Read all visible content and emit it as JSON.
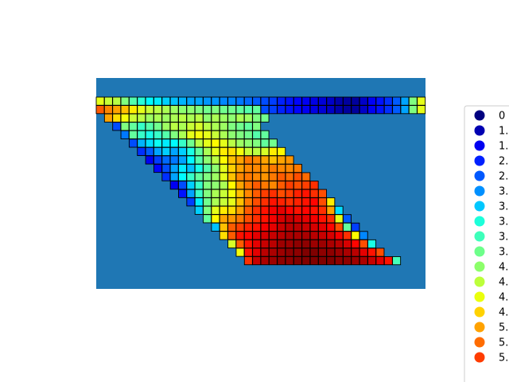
{
  "chart_data": {
    "type": "heatmap",
    "title": "",
    "xlabel": "",
    "ylabel": "",
    "axes_visible": false,
    "grid": false,
    "background_color": "#1f77b4",
    "cell_edge_color": "#000000",
    "colormap": "jet",
    "value_range": [
      0,
      7
    ],
    "legend": {
      "placement": "right",
      "marker": "circle",
      "labels": [
        "0",
        "1.",
        "1.",
        "2.",
        "2.",
        "3.",
        "3.",
        "3.",
        "3.",
        "3.",
        "4.",
        "4.",
        "4.",
        "4.",
        "5.",
        "5.",
        "5."
      ],
      "colors": [
        "#00007f",
        "#0000b2",
        "#0000f1",
        "#0020ff",
        "#0058ff",
        "#0090ff",
        "#00c8ff",
        "#1cffda",
        "#3dffba",
        "#6dff8a",
        "#8cff6a",
        "#bcff3a",
        "#eaff0c",
        "#ffd200",
        "#ffa200",
        "#ff6c00",
        "#ff3c00"
      ]
    },
    "rows": 21,
    "columns": 40,
    "row_starts": [
      0,
      0,
      1,
      2,
      3,
      4,
      5,
      6,
      7,
      8,
      9,
      10,
      11,
      12,
      13,
      14,
      15,
      16,
      17,
      18,
      19
    ],
    "row_values": [
      [
        4.2,
        4.0,
        3.9,
        3.5,
        3.2,
        2.9,
        2.6,
        2.5,
        2.3,
        2.2,
        2.1,
        2.0,
        2.0,
        1.9,
        1.9,
        1.8,
        1.8,
        1.7,
        1.6,
        1.5,
        1.4,
        1.3,
        1.1,
        1.0,
        0.9,
        0.8,
        0.7,
        0.6,
        0.5,
        0.3,
        0.2,
        0.2,
        0.5,
        0.8,
        1.0,
        1.2,
        1.5,
        2.0,
        3.5,
        4.2
      ],
      [
        5.5,
        5.2,
        5.0,
        4.8,
        4.5,
        4.2,
        4.0,
        3.9,
        3.8,
        3.7,
        3.6,
        3.6,
        3.5,
        3.4,
        3.5,
        3.4,
        3.4,
        3.3,
        3.2,
        3.3,
        1.4,
        1.3,
        1.1,
        1.0,
        0.9,
        0.8,
        0.7,
        0.6,
        0.5,
        0.3,
        0.2,
        0.2,
        0.5,
        0.8,
        1.0,
        1.2,
        1.5,
        2.0,
        3.5,
        4.2
      ],
      [
        5.0,
        4.6,
        4.3,
        4.0,
        3.9,
        3.7,
        3.8,
        3.7,
        3.8,
        3.9,
        3.8,
        3.9,
        3.6,
        3.8,
        3.7,
        3.6,
        3.8,
        3.7,
        3.5,
        3.4
      ],
      [
        1.4,
        3.5,
        3.3,
        3.0,
        3.2,
        3.4,
        3.7,
        3.9,
        3.8,
        4.0,
        4.1,
        3.9,
        3.8,
        3.7,
        3.5,
        3.4,
        3.3,
        3.5
      ],
      [
        1.7,
        3.3,
        3.0,
        2.8,
        3.0,
        3.2,
        3.5,
        3.8,
        4.2,
        4.3,
        4.2,
        4.0,
        3.8,
        3.6,
        3.5,
        3.4,
        3.2,
        3.3
      ],
      [
        1.4,
        2.1,
        2.4,
        2.7,
        2.5,
        2.6,
        3.0,
        3.4,
        3.9,
        4.2,
        4.4,
        4.2,
        3.9,
        3.7,
        3.6,
        3.5,
        3.3,
        3.4
      ],
      [
        1.2,
        1.5,
        2.0,
        2.3,
        2.0,
        2.3,
        2.8,
        3.3,
        3.8,
        4.2,
        4.5,
        4.6,
        4.3,
        4.0,
        3.9,
        4.1,
        4.5,
        4.4
      ],
      [
        0.8,
        1.3,
        1.6,
        1.7,
        2.0,
        2.6,
        3.2,
        3.6,
        3.9,
        4.4,
        4.8,
        5.0,
        5.3,
        5.2,
        5.0,
        4.8,
        5.0,
        5.1
      ],
      [
        0.9,
        1.4,
        2.0,
        2.5,
        2.2,
        2.8,
        3.2,
        3.6,
        4.2,
        4.7,
        5.0,
        5.2,
        5.2,
        5.1,
        5.3,
        5.2,
        5.2,
        5.3
      ],
      [
        1.2,
        2.0,
        2.6,
        3.0,
        3.3,
        3.5,
        3.7,
        4.2,
        4.8,
        5.2,
        5.3,
        5.2,
        5.1,
        5.3,
        5.5,
        5.4,
        5.6,
        5.4
      ],
      [
        0.8,
        1.4,
        2.3,
        3.0,
        3.5,
        3.6,
        3.8,
        4.4,
        5.0,
        5.3,
        5.5,
        5.3,
        5.2,
        5.5,
        5.7,
        5.6,
        5.7,
        5.8
      ],
      [
        1.0,
        2.0,
        3.0,
        3.5,
        3.8,
        4.0,
        4.3,
        4.8,
        5.2,
        5.5,
        5.7,
        5.8,
        5.6,
        5.7,
        5.9,
        6.0,
        5.8,
        5.6
      ],
      [
        1.3,
        2.5,
        3.4,
        3.8,
        4.0,
        4.2,
        4.8,
        5.3,
        5.6,
        5.8,
        6.0,
        5.9,
        5.8,
        5.9,
        6.0,
        6.1,
        5.6,
        4.5
      ],
      [
        2.3,
        3.5,
        4.2,
        4.5,
        4.6,
        5.0,
        5.5,
        5.8,
        6.0,
        6.2,
        6.3,
        6.1,
        6.0,
        6.1,
        6.0,
        5.8,
        5.0,
        2.4
      ],
      [
        3.3,
        4.4,
        5.0,
        5.1,
        5.3,
        5.6,
        5.8,
        6.0,
        6.2,
        6.4,
        6.5,
        6.4,
        6.3,
        6.2,
        6.0,
        5.8,
        4.2,
        1.5
      ],
      [
        2.2,
        4.8,
        5.5,
        5.7,
        5.9,
        6.0,
        6.2,
        6.3,
        6.5,
        6.6,
        6.6,
        6.5,
        6.4,
        6.3,
        6.1,
        5.6,
        3.3,
        1.3
      ],
      [
        4.6,
        5.5,
        6.0,
        6.1,
        6.3,
        6.4,
        6.5,
        6.6,
        6.7,
        6.7,
        6.7,
        6.6,
        6.5,
        6.4,
        6.2,
        5.8,
        4.4,
        1.8
      ],
      [
        4.1,
        5.5,
        6.0,
        6.3,
        6.5,
        6.6,
        6.8,
        6.8,
        6.9,
        6.9,
        6.8,
        6.8,
        6.7,
        6.6,
        6.4,
        6.1,
        5.6,
        2.8
      ],
      [
        4.3,
        6.0,
        6.3,
        6.6,
        6.7,
        6.8,
        6.9,
        6.9,
        7.0,
        7.0,
        6.9,
        6.9,
        6.8,
        6.7,
        6.6,
        6.3,
        6.0,
        5.6
      ],
      [
        5.8,
        6.5,
        6.7,
        6.8,
        6.9,
        6.9,
        7.0,
        7.0,
        7.0,
        7.0,
        7.0,
        6.9,
        6.9,
        6.8,
        6.7,
        6.5,
        6.3,
        6.0,
        3.1
      ]
    ]
  }
}
